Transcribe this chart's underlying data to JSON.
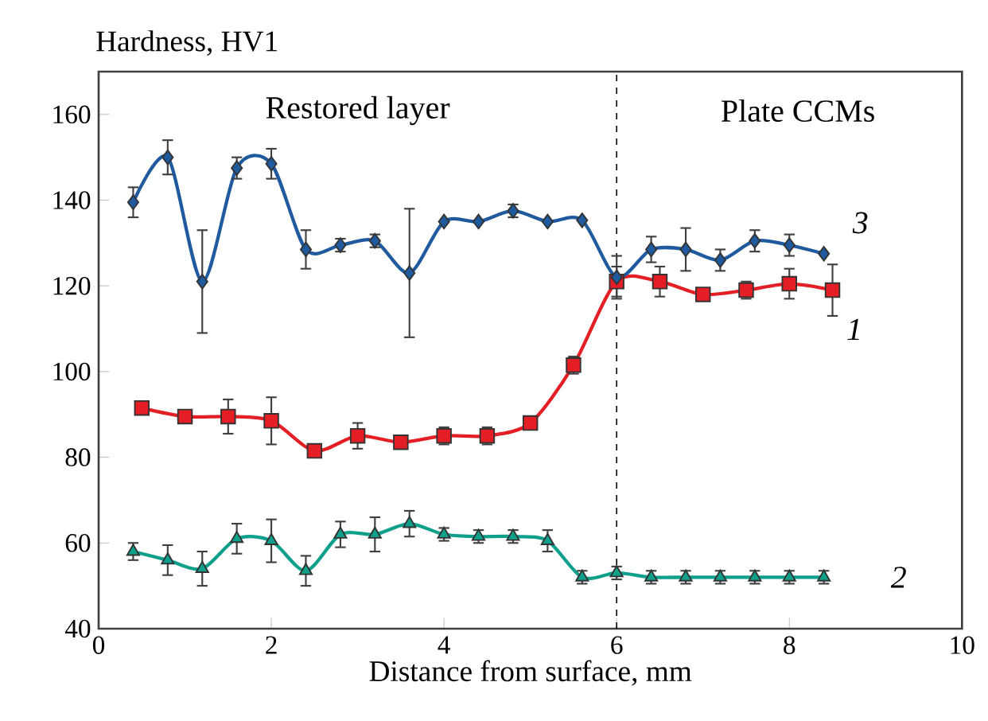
{
  "chart_data": {
    "type": "line",
    "xlabel": "Distance from surface, mm",
    "ylabel": "Hardness, HV1",
    "xlim": [
      0,
      10
    ],
    "ylim": [
      40,
      170
    ],
    "xticks": [
      0,
      2,
      4,
      6,
      8,
      10
    ],
    "yticks": [
      40,
      60,
      80,
      100,
      120,
      140,
      160
    ],
    "line_style": "solid",
    "grid": false,
    "annotations": [
      "Restored layer",
      "Plate CCMs"
    ],
    "ref_lines": [
      {
        "axis": "x",
        "value": 6,
        "line_style": "dashed",
        "color": "#000000"
      }
    ],
    "series": [
      {
        "name": "1",
        "color": "#e31e24",
        "marker": "square",
        "x": [
          0.5,
          1.0,
          1.5,
          2.0,
          2.5,
          3.0,
          3.5,
          4.0,
          4.5,
          5.0,
          5.5,
          6.0,
          6.5,
          7.0,
          7.5,
          8.0,
          8.5
        ],
        "values": [
          91.5,
          89.5,
          89.5,
          88.5,
          81.5,
          85,
          83.5,
          85,
          85,
          88,
          101.5,
          121,
          121,
          118,
          119,
          120.5,
          119
        ],
        "errors": [
          null,
          null,
          4,
          5.5,
          1.5,
          3,
          null,
          2,
          2,
          1.5,
          2,
          3.5,
          3.5,
          null,
          2,
          3.5,
          6
        ]
      },
      {
        "name": "2",
        "color": "#0fa08c",
        "marker": "triangle",
        "x": [
          0.4,
          0.8,
          1.2,
          1.6,
          2.0,
          2.4,
          2.8,
          3.2,
          3.6,
          4.0,
          4.4,
          4.8,
          5.2,
          5.6,
          6.0,
          6.4,
          6.8,
          7.2,
          7.6,
          8.0,
          8.4
        ],
        "values": [
          58,
          56,
          54,
          61,
          60.5,
          53.5,
          62,
          62,
          64.5,
          62,
          61.5,
          61.5,
          60.5,
          52,
          53,
          52,
          52,
          52,
          52,
          52,
          52
        ],
        "errors": [
          2,
          3.5,
          4,
          3.5,
          5,
          3.5,
          3,
          4,
          3,
          1.5,
          1.5,
          1.5,
          2.5,
          1.5,
          1.5,
          1.5,
          1.5,
          1.5,
          1.5,
          1.5,
          1.5
        ]
      },
      {
        "name": "3",
        "color": "#1f5a9e",
        "marker": "diamond",
        "x": [
          0.4,
          0.8,
          1.2,
          1.6,
          2.0,
          2.4,
          2.8,
          3.2,
          3.6,
          4.0,
          4.4,
          4.8,
          5.2,
          5.6,
          6.0,
          6.4,
          6.8,
          7.2,
          7.6,
          8.0,
          8.4
        ],
        "values": [
          139.5,
          150,
          121,
          147.5,
          148.5,
          128.5,
          129.5,
          130.5,
          123,
          135,
          135,
          137.5,
          135,
          135.3,
          122,
          128.5,
          128.5,
          126,
          130.5,
          129.5,
          127.5
        ],
        "errors": [
          3.5,
          4,
          12,
          2.5,
          3.5,
          4.5,
          1.5,
          1.5,
          15,
          null,
          null,
          1.5,
          null,
          null,
          5,
          3,
          5,
          2.5,
          2.5,
          2.5,
          null
        ]
      }
    ]
  }
}
